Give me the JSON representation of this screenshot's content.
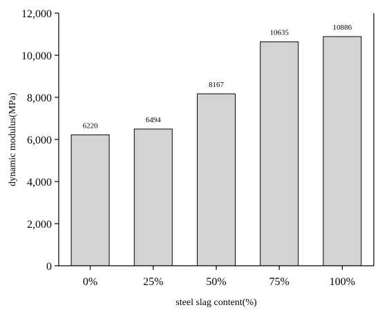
{
  "chart_data": {
    "type": "bar",
    "title": "",
    "xlabel": "steel slag content(%)",
    "ylabel": "dynamic modulus(MPa)",
    "categories": [
      "0%",
      "25%",
      "50%",
      "75%",
      "100%"
    ],
    "values": [
      6220,
      6494,
      8167,
      10635,
      10886
    ],
    "data_labels": [
      "6220",
      "6494",
      "8167",
      "10635",
      "10886"
    ],
    "ylim": [
      0,
      12000
    ],
    "yticks": [
      0,
      2000,
      4000,
      6000,
      8000,
      10000,
      12000
    ],
    "ytick_labels": [
      "0",
      "2,000",
      "4,000",
      "6,000",
      "8,000",
      "10,000",
      "12,000"
    ],
    "grid": false,
    "legend": "none",
    "bar_color": "#d3d3d3",
    "edge_color": "#000000"
  }
}
